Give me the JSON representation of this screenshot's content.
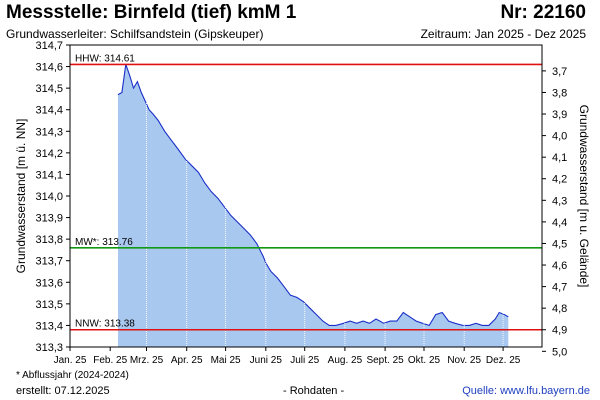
{
  "header": {
    "title": "Messstelle: Birnfeld (tief) kmM 1",
    "number": "Nr: 22160",
    "aquifer": "Grundwasserleiter:   Schilfsandstein (Gipskeuper)",
    "period": "Zeitraum: Jan 2025 - Dez 2025"
  },
  "footer": {
    "footnote": "* Abflussjahr (2024-2024)",
    "created": "erstellt:  07.12.2025",
    "raw": "- Rohdaten -",
    "source": "Quelle:  www.lfu.bayern.de"
  },
  "colors": {
    "area_fill": "#a8c8f0",
    "line": "#1a2fc8",
    "hhw": "#e01010",
    "mw": "#119911",
    "nnw": "#e01010",
    "source_link": "#1f3fbf"
  },
  "chart_data": {
    "type": "area",
    "ylabel_left": "Grundwasserstand [m ü. NN]",
    "ylabel_right": "Grundwasserstand [m u. Gelände]",
    "ylim": [
      313.3,
      314.7
    ],
    "yticks_left": [
      "313,3",
      "313,4",
      "313,5",
      "313,6",
      "313,7",
      "313,8",
      "313,9",
      "314,0",
      "314,1",
      "314,2",
      "314,3",
      "314,4",
      "314,5",
      "314,6",
      "314,7"
    ],
    "right_axis_offset": 318.28,
    "yticks_right": [
      "3,7",
      "3,8",
      "3,9",
      "4,0",
      "4,1",
      "4,2",
      "4,3",
      "4,4",
      "4,5",
      "4,6",
      "4,7",
      "4,8",
      "4,9",
      "5,0"
    ],
    "xlim": [
      "2025-01-01",
      "2025-12-31"
    ],
    "xticks": [
      "Jan. 25",
      "Feb. 25",
      "Mrz. 25",
      "Apr. 25",
      "Mai 25",
      "Juni 25",
      "Juli 25",
      "Aug. 25",
      "Sept. 25",
      "Okt. 25",
      "Nov. 25",
      "Dez. 25"
    ],
    "grid": "vertical dotted",
    "reference_lines": [
      {
        "label": "HHW: 314.61",
        "value": 314.61
      },
      {
        "label": "MW*: 313.76",
        "value": 313.76
      },
      {
        "label": "NNW: 313.38",
        "value": 313.38
      }
    ],
    "series": [
      {
        "x": [
          "2025-02-07",
          "2025-02-10",
          "2025-02-13",
          "2025-02-16",
          "2025-02-19",
          "2025-02-22",
          "2025-02-25",
          "2025-02-28",
          "2025-03-03",
          "2025-03-06",
          "2025-03-10",
          "2025-03-15",
          "2025-03-20",
          "2025-03-25",
          "2025-03-31",
          "2025-04-05",
          "2025-04-10",
          "2025-04-15",
          "2025-04-20",
          "2025-04-25",
          "2025-04-30",
          "2025-05-05",
          "2025-05-10",
          "2025-05-15",
          "2025-05-20",
          "2025-05-25",
          "2025-05-30",
          "2025-06-01",
          "2025-06-05",
          "2025-06-10",
          "2025-06-15",
          "2025-06-20",
          "2025-06-25",
          "2025-06-30",
          "2025-07-05",
          "2025-07-10",
          "2025-07-15",
          "2025-07-20",
          "2025-07-25",
          "2025-07-31",
          "2025-08-05",
          "2025-08-10",
          "2025-08-15",
          "2025-08-20",
          "2025-08-25",
          "2025-08-31",
          "2025-09-05",
          "2025-09-10",
          "2025-09-15",
          "2025-09-20",
          "2025-09-25",
          "2025-09-30",
          "2025-10-05",
          "2025-10-10",
          "2025-10-15",
          "2025-10-20",
          "2025-10-25",
          "2025-10-31",
          "2025-11-05",
          "2025-11-10",
          "2025-11-15",
          "2025-11-20",
          "2025-11-25",
          "2025-11-28",
          "2025-12-02",
          "2025-12-05"
        ],
        "y": [
          314.47,
          314.48,
          314.61,
          314.56,
          314.5,
          314.53,
          314.48,
          314.44,
          314.4,
          314.38,
          314.35,
          314.3,
          314.26,
          314.22,
          314.17,
          314.14,
          314.11,
          314.06,
          314.02,
          313.99,
          313.95,
          313.91,
          313.88,
          313.85,
          313.82,
          313.78,
          313.72,
          313.69,
          313.65,
          313.62,
          313.58,
          313.54,
          313.53,
          313.51,
          313.48,
          313.45,
          313.42,
          313.4,
          313.4,
          313.41,
          313.42,
          313.41,
          313.42,
          313.41,
          313.43,
          313.41,
          313.42,
          313.42,
          313.46,
          313.44,
          313.42,
          313.41,
          313.4,
          313.45,
          313.46,
          313.42,
          313.41,
          313.4,
          313.4,
          313.41,
          313.4,
          313.4,
          313.43,
          313.46,
          313.45,
          313.44
        ]
      }
    ]
  }
}
